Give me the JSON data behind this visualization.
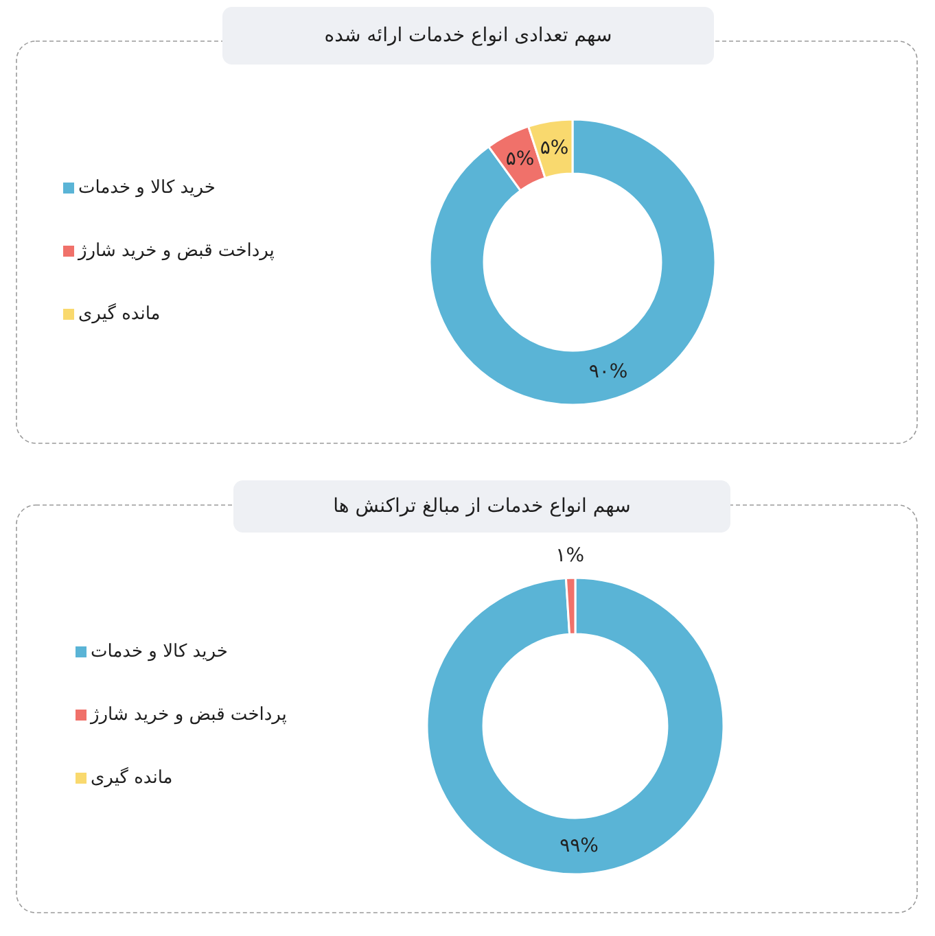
{
  "chart_data": [
    {
      "type": "donut",
      "title": "سهم تعدادی انواع خدمات ارائه شده",
      "categories": [
        "خرید کالا و خدمات",
        "پرداخت قبض و خرید شارژ",
        "مانده گیری"
      ],
      "values": [
        90,
        5,
        5
      ],
      "colors": [
        "#5ab4d6",
        "#f0716a",
        "#f9d96e"
      ],
      "value_labels": [
        "۹۰%",
        "۵%",
        "۵%"
      ],
      "legend": "left"
    },
    {
      "type": "donut",
      "title": "سهم انواع خدمات از مبالغ تراکنش ها",
      "categories": [
        "خرید کالا و خدمات",
        "پرداخت قبض و خرید شارژ",
        "مانده گیری"
      ],
      "values": [
        99,
        1,
        0
      ],
      "colors": [
        "#5ab4d6",
        "#f0716a",
        "#f9d96e"
      ],
      "value_labels": [
        "۹۹%",
        "۱%",
        null
      ],
      "legend": "left"
    }
  ]
}
